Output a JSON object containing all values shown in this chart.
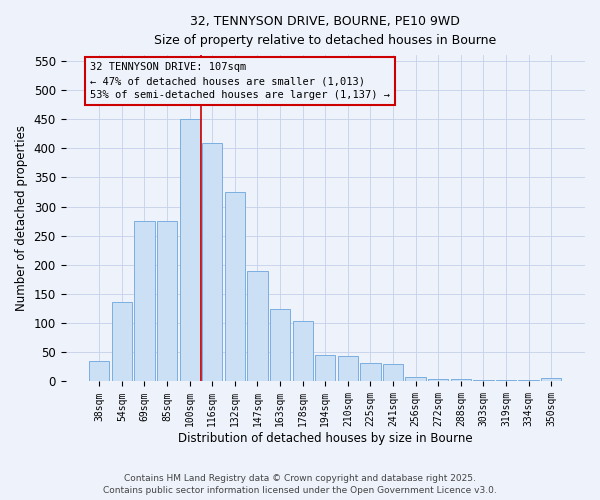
{
  "title_line1": "32, TENNYSON DRIVE, BOURNE, PE10 9WD",
  "title_line2": "Size of property relative to detached houses in Bourne",
  "xlabel": "Distribution of detached houses by size in Bourne",
  "ylabel": "Number of detached properties",
  "categories": [
    "38sqm",
    "54sqm",
    "69sqm",
    "85sqm",
    "100sqm",
    "116sqm",
    "132sqm",
    "147sqm",
    "163sqm",
    "178sqm",
    "194sqm",
    "210sqm",
    "225sqm",
    "241sqm",
    "256sqm",
    "272sqm",
    "288sqm",
    "303sqm",
    "319sqm",
    "334sqm",
    "350sqm"
  ],
  "values": [
    35,
    137,
    275,
    275,
    450,
    410,
    325,
    190,
    125,
    103,
    46,
    44,
    31,
    30,
    8,
    4,
    5,
    2,
    2,
    2,
    6
  ],
  "bar_color": "#cce0f5",
  "bar_edge_color": "#7aafe0",
  "vline_x": 4.5,
  "vline_color": "#cc0000",
  "annotation_text_line1": "32 TENNYSON DRIVE: 107sqm",
  "annotation_text_line2": "← 47% of detached houses are smaller (1,013)",
  "annotation_text_line3": "53% of semi-detached houses are larger (1,137) →",
  "annotation_box_color": "#cc0000",
  "ylim": [
    0,
    560
  ],
  "yticks": [
    0,
    50,
    100,
    150,
    200,
    250,
    300,
    350,
    400,
    450,
    500,
    550
  ],
  "footer_line1": "Contains HM Land Registry data © Crown copyright and database right 2025.",
  "footer_line2": "Contains public sector information licensed under the Open Government Licence v3.0.",
  "bg_color": "#eef2fb",
  "grid_color": "#c5d0e8"
}
